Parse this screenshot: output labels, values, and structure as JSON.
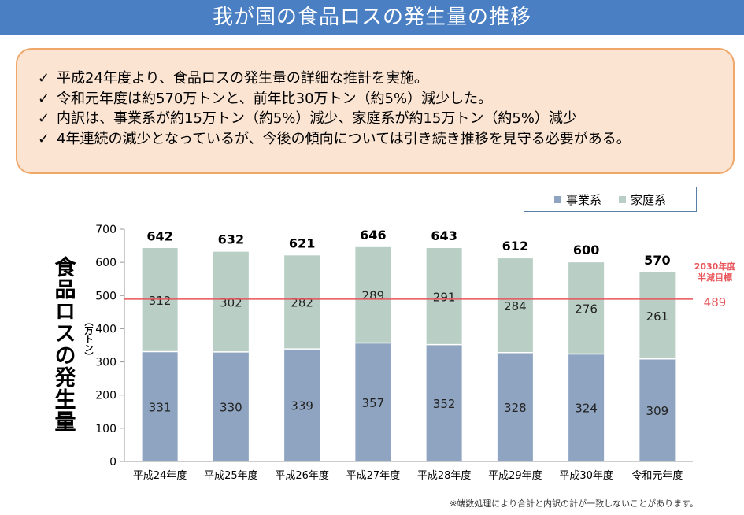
{
  "title": "我が国の食品ロスの発生量の推移",
  "summary": {
    "check_mark": "✓",
    "lines": [
      "平成24年度より、食品ロスの発生量の詳細な推計を実施。",
      "令和元年度は約570万トンと、前年比30万トン（約5%）減少した。",
      "内訳は、事業系が約15万トン（約5%）減少、家庭系が約15万トン（約5%）減少",
      "4年連続の減少となっているが、今後の傾向については引き続き推移を見守る必要がある。"
    ]
  },
  "chart_data": {
    "type": "bar",
    "stacked": true,
    "categories": [
      "平成24年度",
      "平成25年度",
      "平成26年度",
      "平成27年度",
      "平成28年度",
      "平成29年度",
      "平成30年度",
      "令和元年度"
    ],
    "series": [
      {
        "name": "事業系",
        "values": [
          331,
          330,
          339,
          357,
          352,
          328,
          324,
          309
        ],
        "color": "#8fa4c1"
      },
      {
        "name": "家庭系",
        "values": [
          312,
          302,
          282,
          289,
          291,
          284,
          276,
          261
        ],
        "color": "#b9cfc6"
      }
    ],
    "totals": [
      642,
      632,
      621,
      646,
      643,
      612,
      600,
      570
    ],
    "ylabel": "食品ロスの発生量",
    "yunit": "（万トン）",
    "ylim": [
      0,
      700
    ],
    "yticks": [
      0,
      100,
      200,
      300,
      400,
      500,
      600,
      700
    ],
    "target": {
      "value": 489,
      "label_lines": [
        "2030年度",
        "半減目標"
      ],
      "value_label": "489",
      "color": "#e8555a"
    },
    "legend_position": "top-right",
    "grid": false
  },
  "footnote": "※端数処理により合計と内訳の計が一致しないことがあります。"
}
